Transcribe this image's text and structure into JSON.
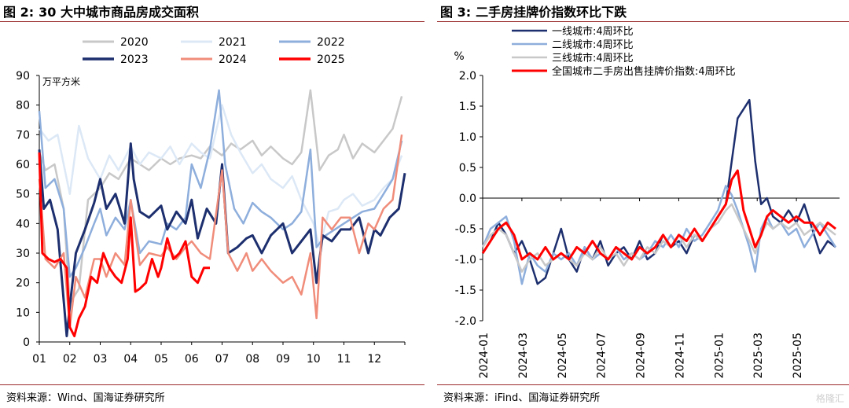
{
  "left": {
    "figure_label": "图 2:",
    "title_text": "30 大中城市商品房成交面积",
    "source": "资料来源：Wind、国海证券研究所"
  },
  "right": {
    "figure_label": "图 3:",
    "title_text": "二手房挂牌价指数环比下跌",
    "source": "资料来源：iFind、国海证券研究所"
  },
  "watermark": "格隆汇",
  "chart_data": [
    {
      "type": "line",
      "title": "30 大中城市商品房成交面积",
      "ylabel": "万平方米",
      "ylim": [
        0,
        90
      ],
      "yticks": [
        0,
        10,
        20,
        30,
        40,
        50,
        60,
        70,
        80,
        90
      ],
      "xlim": [
        1,
        13
      ],
      "xticks": [
        "01",
        "02",
        "03",
        "04",
        "05",
        "06",
        "07",
        "08",
        "09",
        "10",
        "11",
        "12"
      ],
      "legend_position": "top",
      "series": [
        {
          "name": "2020",
          "color": "#c8c8c8",
          "width": 2.5,
          "x": [
            1,
            1.2,
            1.5,
            1.8,
            2,
            2.3,
            2.6,
            3,
            3.3,
            3.6,
            4,
            4.3,
            4.6,
            5,
            5.3,
            5.6,
            6,
            6.3,
            6.6,
            7,
            7.3,
            7.6,
            8,
            8.3,
            8.6,
            9,
            9.3,
            9.6,
            9.9,
            10.2,
            10.5,
            10.8,
            11,
            11.3,
            11.6,
            12,
            12.3,
            12.6,
            12.9
          ],
          "y": [
            64,
            58,
            60,
            45,
            13,
            18,
            48,
            52,
            57,
            55,
            62,
            60,
            58,
            62,
            60,
            62,
            63,
            62,
            66,
            63,
            67,
            65,
            68,
            63,
            66,
            62,
            60,
            64,
            85,
            58,
            63,
            65,
            70,
            62,
            67,
            64,
            68,
            72,
            83
          ]
        },
        {
          "name": "2021",
          "color": "#dce8f6",
          "width": 2.5,
          "x": [
            1,
            1.3,
            1.6,
            2,
            2.3,
            2.6,
            3,
            3.3,
            3.6,
            4,
            4.3,
            4.6,
            5,
            5.3,
            5.6,
            6,
            6.3,
            6.6,
            7,
            7.3,
            7.6,
            8,
            8.3,
            8.6,
            9,
            9.3,
            9.6,
            10,
            10.2,
            10.5,
            10.8,
            11,
            11.3,
            11.6,
            12,
            12.3,
            12.6,
            12.9
          ],
          "y": [
            72,
            68,
            70,
            50,
            73,
            62,
            55,
            63,
            58,
            66,
            60,
            64,
            62,
            66,
            60,
            67,
            64,
            62,
            80,
            70,
            64,
            57,
            60,
            55,
            52,
            56,
            48,
            40,
            32,
            44,
            45,
            48,
            50,
            46,
            48,
            52,
            55,
            63
          ]
        },
        {
          "name": "2022",
          "color": "#8eaedc",
          "width": 2.5,
          "x": [
            1,
            1.2,
            1.5,
            1.8,
            2,
            2.2,
            2.5,
            2.8,
            3,
            3.2,
            3.5,
            3.8,
            4,
            4.3,
            4.6,
            5,
            5.2,
            5.5,
            5.8,
            6,
            6.3,
            6.6,
            6.9,
            7.1,
            7.4,
            7.7,
            8,
            8.3,
            8.6,
            9,
            9.3,
            9.6,
            9.9,
            10.1,
            10.4,
            10.7,
            11,
            11.3,
            11.6,
            12,
            12.3,
            12.6,
            12.9
          ],
          "y": [
            78,
            52,
            55,
            45,
            22,
            25,
            32,
            40,
            45,
            36,
            42,
            38,
            48,
            30,
            34,
            33,
            40,
            38,
            42,
            60,
            52,
            65,
            85,
            60,
            45,
            40,
            47,
            44,
            42,
            38,
            40,
            44,
            65,
            32,
            36,
            38,
            40,
            42,
            44,
            45,
            50,
            55,
            68
          ]
        },
        {
          "name": "2023",
          "color": "#1d2f6e",
          "width": 3,
          "x": [
            1,
            1.15,
            1.35,
            1.6,
            1.9,
            2,
            2.2,
            2.5,
            2.8,
            3,
            3.2,
            3.5,
            3.8,
            4,
            4.1,
            4.3,
            4.6,
            5,
            5.2,
            5.5,
            5.8,
            6,
            6.2,
            6.5,
            6.8,
            7,
            7.2,
            7.5,
            7.8,
            8,
            8.3,
            8.6,
            9,
            9.3,
            9.6,
            9.9,
            10.1,
            10.3,
            10.6,
            10.9,
            11.2,
            11.5,
            11.8,
            12,
            12.2,
            12.5,
            12.8,
            13
          ],
          "y": [
            65,
            45,
            48,
            38,
            2,
            12,
            30,
            38,
            47,
            55,
            45,
            50,
            40,
            67,
            55,
            44,
            42,
            46,
            38,
            44,
            40,
            48,
            35,
            45,
            40,
            60,
            30,
            32,
            35,
            36,
            30,
            36,
            40,
            30,
            34,
            38,
            20,
            36,
            34,
            38,
            38,
            42,
            30,
            38,
            36,
            42,
            45,
            57
          ]
        },
        {
          "name": "2024",
          "color": "#f08c7a",
          "width": 2.5,
          "x": [
            1,
            1.2,
            1.5,
            1.8,
            2,
            2.2,
            2.5,
            2.8,
            3,
            3.2,
            3.5,
            3.8,
            4,
            4.3,
            4.6,
            5,
            5.2,
            5.5,
            5.8,
            6,
            6.3,
            6.6,
            7,
            7.2,
            7.5,
            7.8,
            8,
            8.3,
            8.6,
            9,
            9.3,
            9.6,
            9.9,
            10.1,
            10.3,
            10.6,
            10.9,
            11.2,
            11.5,
            11.8,
            12,
            12.3,
            12.6,
            12.9
          ],
          "y": [
            55,
            28,
            25,
            30,
            5,
            22,
            15,
            28,
            28,
            22,
            30,
            26,
            48,
            26,
            30,
            29,
            32,
            28,
            32,
            34,
            30,
            28,
            58,
            30,
            24,
            30,
            24,
            28,
            24,
            20,
            22,
            16,
            30,
            8,
            42,
            38,
            42,
            42,
            30,
            40,
            38,
            45,
            48,
            70
          ]
        },
        {
          "name": "2025",
          "color": "#ff0000",
          "width": 3,
          "x": [
            1,
            1.1,
            1.3,
            1.5,
            1.7,
            1.9,
            2,
            2.15,
            2.3,
            2.5,
            2.7,
            2.9,
            3.1,
            3.3,
            3.5,
            3.7,
            3.9,
            4,
            4.15,
            4.3,
            4.5,
            4.7,
            4.9,
            5,
            5.2,
            5.4,
            5.6,
            5.8,
            6,
            6.2,
            6.4,
            6.6
          ],
          "y": [
            64,
            30,
            28,
            27,
            28,
            25,
            5,
            2,
            8,
            12,
            22,
            20,
            30,
            25,
            22,
            20,
            28,
            42,
            17,
            18,
            20,
            28,
            22,
            25,
            35,
            28,
            30,
            34,
            22,
            20,
            25,
            25
          ]
        }
      ]
    },
    {
      "type": "line",
      "title": "二手房挂牌价指数环比下跌",
      "ylabel": "%",
      "ylim": [
        -2.0,
        2.0
      ],
      "yticks": [
        -2.0,
        -1.5,
        -1.0,
        -0.5,
        0.0,
        0.5,
        1.0,
        1.5,
        2.0
      ],
      "x_unit": "month index (0 = 2024-01)",
      "xticks": [
        "2024-01",
        "2024-03",
        "2024-05",
        "2024-07",
        "2024-09",
        "2024-11",
        "2025-01",
        "2025-03",
        "2025-05"
      ],
      "xticks_at": [
        0,
        2,
        4,
        6,
        8,
        10,
        12,
        14,
        16
      ],
      "xlim": [
        0,
        18.2
      ],
      "legend_position": "top",
      "series": [
        {
          "name": "一线城市:4周环比",
          "color": "#1d2f6e",
          "width": 2.5,
          "x": [
            0,
            0.4,
            0.8,
            1.2,
            1.6,
            2,
            2.4,
            2.8,
            3.2,
            3.6,
            4,
            4.4,
            4.8,
            5.2,
            5.6,
            6,
            6.4,
            6.8,
            7.2,
            7.6,
            8,
            8.4,
            8.8,
            9.2,
            9.6,
            10,
            10.4,
            10.8,
            11.2,
            11.6,
            12,
            12.4,
            12.7,
            13,
            13.3,
            13.6,
            13.9,
            14.2,
            14.5,
            14.8,
            15.2,
            15.6,
            16,
            16.4,
            16.8,
            17.2,
            17.6,
            18
          ],
          "y": [
            -0.9,
            -0.7,
            -0.4,
            -0.6,
            -0.9,
            -0.7,
            -1.0,
            -1.4,
            -1.3,
            -0.9,
            -0.5,
            -1.0,
            -1.2,
            -0.8,
            -1.0,
            -0.7,
            -1.1,
            -0.9,
            -0.8,
            -1.0,
            -0.7,
            -1.0,
            -0.9,
            -0.6,
            -0.8,
            -0.7,
            -0.9,
            -0.6,
            -0.7,
            -0.5,
            -0.3,
            -0.1,
            0.6,
            1.3,
            1.45,
            1.6,
            0.6,
            -0.1,
            0.0,
            -0.3,
            -0.4,
            -0.2,
            -0.4,
            -0.1,
            -0.5,
            -0.9,
            -0.7,
            -0.8
          ]
        },
        {
          "name": "二线城市:4周环比",
          "color": "#8eaedc",
          "width": 2.5,
          "x": [
            0,
            0.4,
            0.8,
            1.2,
            1.6,
            2,
            2.4,
            2.8,
            3.2,
            3.6,
            4,
            4.4,
            4.8,
            5.2,
            5.6,
            6,
            6.4,
            6.8,
            7.2,
            7.6,
            8,
            8.4,
            8.8,
            9.2,
            9.6,
            10,
            10.4,
            10.8,
            11.2,
            11.6,
            12,
            12.4,
            12.7,
            13,
            13.3,
            13.6,
            13.9,
            14.2,
            14.5,
            14.8,
            15.2,
            15.6,
            16,
            16.4,
            16.8,
            17.2,
            17.6,
            18
          ],
          "y": [
            -0.8,
            -0.5,
            -0.4,
            -0.3,
            -0.7,
            -1.4,
            -0.9,
            -1.1,
            -1.2,
            -0.9,
            -1.0,
            -0.9,
            -1.1,
            -0.8,
            -1.0,
            -0.9,
            -1.0,
            -0.8,
            -1.0,
            -0.9,
            -1.0,
            -0.9,
            -0.7,
            -0.8,
            -0.6,
            -0.8,
            -0.5,
            -0.7,
            -0.6,
            -0.4,
            -0.2,
            0.2,
            0.05,
            -0.2,
            -0.5,
            -0.8,
            -1.2,
            -0.5,
            -0.3,
            -0.5,
            -0.4,
            -0.6,
            -0.5,
            -0.8,
            -0.6,
            -0.4,
            -0.6,
            -0.8
          ]
        },
        {
          "name": "三线城市:4周环比",
          "color": "#c8c8c8",
          "width": 2.5,
          "x": [
            0,
            0.4,
            0.8,
            1.2,
            1.6,
            2,
            2.4,
            2.8,
            3.2,
            3.6,
            4,
            4.4,
            4.8,
            5.2,
            5.6,
            6,
            6.4,
            6.8,
            7.2,
            7.6,
            8,
            8.4,
            8.8,
            9.2,
            9.6,
            10,
            10.4,
            10.8,
            11.2,
            11.6,
            12,
            12.4,
            12.7,
            13,
            13.3,
            13.6,
            13.9,
            14.2,
            14.5,
            14.8,
            15.2,
            15.6,
            16,
            16.4,
            16.8,
            17.2,
            17.6,
            18
          ],
          "y": [
            -0.8,
            -0.6,
            -0.5,
            -0.6,
            -0.9,
            -1.2,
            -1.0,
            -0.9,
            -1.1,
            -1.0,
            -0.9,
            -1.0,
            -1.1,
            -0.9,
            -1.0,
            -0.8,
            -1.0,
            -0.9,
            -1.1,
            -0.9,
            -1.0,
            -0.8,
            -0.9,
            -0.7,
            -0.8,
            -0.6,
            -0.8,
            -0.6,
            -0.7,
            -0.5,
            -0.4,
            -0.2,
            -0.1,
            -0.3,
            -0.5,
            -0.7,
            -0.9,
            -0.6,
            -0.4,
            -0.5,
            -0.4,
            -0.5,
            -0.4,
            -0.6,
            -0.5,
            -0.4,
            -0.5,
            -0.6
          ]
        },
        {
          "name": "全国城市二手房出售挂牌价指数:4周环比",
          "color": "#ff0000",
          "width": 3,
          "x": [
            0,
            0.4,
            0.8,
            1.2,
            1.6,
            2,
            2.4,
            2.8,
            3.2,
            3.6,
            4,
            4.4,
            4.8,
            5.2,
            5.6,
            6,
            6.4,
            6.8,
            7.2,
            7.6,
            8,
            8.4,
            8.8,
            9.2,
            9.6,
            10,
            10.4,
            10.8,
            11.2,
            11.6,
            12,
            12.4,
            12.7,
            13,
            13.3,
            13.6,
            13.9,
            14.2,
            14.5,
            14.8,
            15.2,
            15.6,
            16,
            16.4,
            16.8,
            17.2,
            17.6,
            18
          ],
          "y": [
            -0.9,
            -0.7,
            -0.5,
            -0.4,
            -0.6,
            -1.0,
            -0.9,
            -1.0,
            -0.8,
            -1.0,
            -0.9,
            -1.0,
            -0.8,
            -0.9,
            -0.7,
            -0.9,
            -1.0,
            -0.8,
            -0.9,
            -1.0,
            -0.8,
            -0.9,
            -0.8,
            -0.6,
            -0.8,
            -0.6,
            -0.7,
            -0.5,
            -0.7,
            -0.5,
            -0.3,
            -0.1,
            0.3,
            0.45,
            -0.2,
            -0.5,
            -0.8,
            -0.6,
            -0.3,
            -0.2,
            -0.3,
            -0.4,
            -0.3,
            -0.4,
            -0.4,
            -0.6,
            -0.4,
            -0.5
          ]
        }
      ]
    }
  ]
}
